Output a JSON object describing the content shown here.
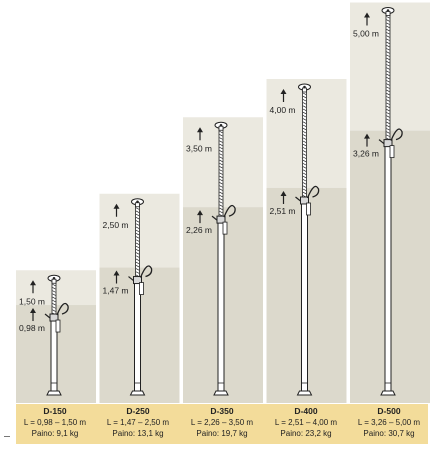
{
  "colors": {
    "panel_upper": "#ebe9e0",
    "panel_lower": "#dcd9cc",
    "label_band": "#f3dc9a",
    "pole": "#ffffff",
    "outline": "#222222"
  },
  "props": [
    {
      "model": "D-150",
      "length": "L = 0,98 – 1,50 m",
      "weight": "Paino: 9,1 kg",
      "max_label": "1,50 m",
      "min_label": "0,98 m",
      "min_m": 0.98,
      "max_m": 1.5
    },
    {
      "model": "D-250",
      "length": "L = 1,47 – 2,50 m",
      "weight": "Paino: 13,1 kg",
      "max_label": "2,50 m",
      "min_label": "1,47 m",
      "min_m": 1.47,
      "max_m": 2.5
    },
    {
      "model": "D-350",
      "length": "L = 2,26 – 3,50 m",
      "weight": "Paino: 19,7 kg",
      "max_label": "3,50 m",
      "min_label": "2,26 m",
      "min_m": 2.26,
      "max_m": 3.5
    },
    {
      "model": "D-400",
      "length": "L = 2,51 – 4,00 m",
      "weight": "Paino: 23,2 kg",
      "max_label": "4,00 m",
      "min_label": "2,51 m",
      "min_m": 2.51,
      "max_m": 4.0
    },
    {
      "model": "D-500",
      "length": "L = 3,26 – 5,00 m",
      "weight": "Paino: 30,7 kg",
      "max_label": "5,00 m",
      "min_label": "3,26 m",
      "min_m": 3.26,
      "max_m": 5.0
    }
  ]
}
